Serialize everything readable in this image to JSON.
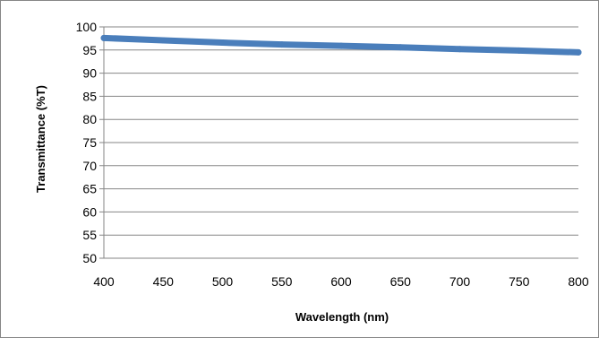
{
  "chart_data": {
    "type": "line",
    "title": "",
    "xlabel": "Wavelength (nm)",
    "ylabel": "Transmittance (%T)",
    "xlim": [
      400,
      800
    ],
    "ylim": [
      50,
      100
    ],
    "x_ticks": [
      400,
      450,
      500,
      550,
      600,
      650,
      700,
      750,
      800
    ],
    "y_ticks": [
      50,
      55,
      60,
      65,
      70,
      75,
      80,
      85,
      90,
      95,
      100
    ],
    "grid": "horizontal",
    "legend": "none",
    "series": [
      {
        "color": "#4a7ebb",
        "x": [
          400,
          450,
          500,
          550,
          600,
          650,
          700,
          750,
          800
        ],
        "y": [
          97.6,
          97.1,
          96.6,
          96.2,
          95.9,
          95.6,
          95.2,
          94.9,
          94.5
        ]
      }
    ]
  }
}
